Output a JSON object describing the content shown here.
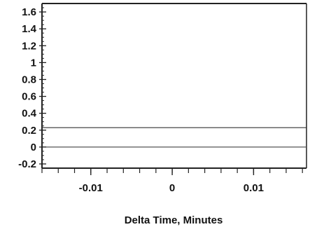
{
  "chart_data": {
    "type": "line",
    "title": "",
    "xlabel": "Delta Time, Minutes",
    "ylabel": "",
    "xlim": [
      -0.016,
      0.0165
    ],
    "ylim": [
      -0.25,
      1.7
    ],
    "x_ticks": [
      {
        "value": -0.01,
        "label": "-0.01"
      },
      {
        "value": 0,
        "label": "0"
      },
      {
        "value": 0.01,
        "label": "0.01"
      }
    ],
    "x_minor_tick_step": 0.002,
    "y_ticks": [
      {
        "value": 1.6,
        "label": "1.6"
      },
      {
        "value": 1.4,
        "label": "1.4"
      },
      {
        "value": 1.2,
        "label": "1.2"
      },
      {
        "value": 1.0,
        "label": "1"
      },
      {
        "value": 0.8,
        "label": "0.8"
      },
      {
        "value": 0.6,
        "label": "0.6"
      },
      {
        "value": 0.4,
        "label": "0.4"
      },
      {
        "value": 0.2,
        "label": "0.2"
      },
      {
        "value": 0.0,
        "label": "0"
      },
      {
        "value": -0.2,
        "label": "-0.2"
      }
    ],
    "y_minor_tick_step": 0.05,
    "series": [
      {
        "x": [
          -0.016,
          0.0165
        ],
        "values": [
          0.23,
          0.23
        ],
        "color": "#333333"
      },
      {
        "x": [
          -0.016,
          0.0165
        ],
        "values": [
          0.0,
          0.0
        ],
        "color": "#555555"
      }
    ],
    "grid": false,
    "legend": "none"
  }
}
